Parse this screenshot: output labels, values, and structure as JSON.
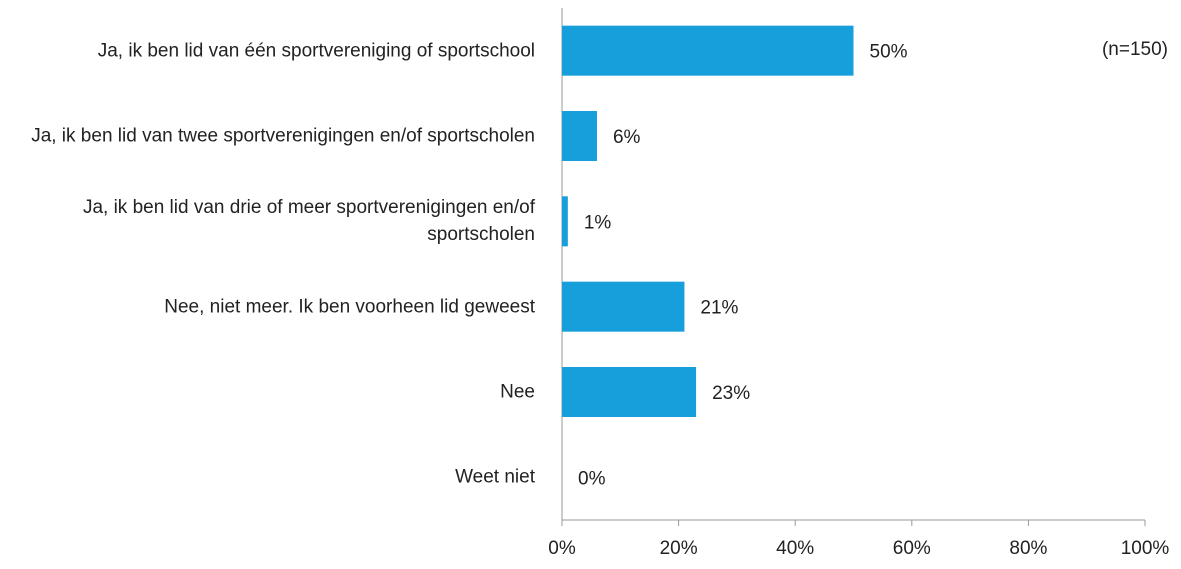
{
  "chart_data": {
    "type": "hbar",
    "categories": [
      "Ja, ik ben lid van één sportvereniging of sportschool",
      "Ja, ik ben lid van twee sportverenigingen en/of sportscholen",
      "Ja, ik ben lid  van drie of meer sportverenigingen en/of sportscholen",
      "Nee, niet meer. Ik ben voorheen lid geweest",
      "Nee",
      "Weet niet"
    ],
    "values": [
      50,
      6,
      1,
      21,
      23,
      0
    ],
    "value_labels": [
      "50%",
      "6%",
      "1%",
      "21%",
      "23%",
      "0%"
    ],
    "color": "#179fdc",
    "xlim": [
      0,
      100
    ],
    "xticks": [
      {
        "value": 0,
        "label": "0%"
      },
      {
        "value": 20,
        "label": "20%"
      },
      {
        "value": 40,
        "label": "40%"
      },
      {
        "value": 60,
        "label": "60%"
      },
      {
        "value": 80,
        "label": "80%"
      },
      {
        "value": 100,
        "label": "100%"
      }
    ],
    "annotation": "(n=150)"
  }
}
